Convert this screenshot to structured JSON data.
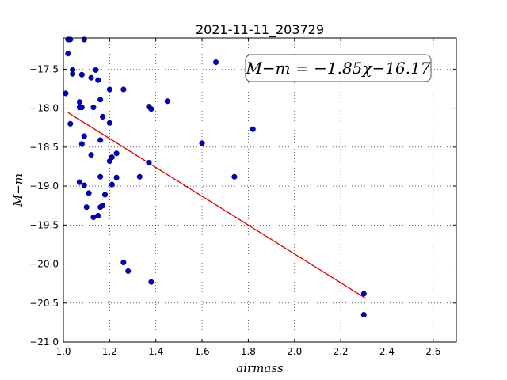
{
  "chart_data": {
    "type": "scatter",
    "title": "2021-11-11_203729",
    "xlabel": "airmass",
    "ylabel": "M−m",
    "xlim": [
      1.0,
      2.7
    ],
    "ylim": [
      -21.0,
      -17.1
    ],
    "xticks": [
      1.0,
      1.2,
      1.4,
      1.6,
      1.8,
      2.0,
      2.2,
      2.4,
      2.6
    ],
    "xtick_labels": [
      "1.0",
      "1.2",
      "1.4",
      "1.6",
      "1.8",
      "2.0",
      "2.2",
      "2.4",
      "2.6"
    ],
    "yticks": [
      -17.5,
      -18.0,
      -18.5,
      -19.0,
      -19.5,
      -20.0,
      -20.5,
      -21.0
    ],
    "ytick_labels": [
      "−17.5",
      "−18.0",
      "−18.5",
      "−19.0",
      "−19.5",
      "−20.0",
      "−20.5",
      "−21.0"
    ],
    "grid": true,
    "annotation": "M−m = −1.85χ−16.17",
    "fit": {
      "slope": -1.85,
      "intercept": -16.17,
      "x_range": [
        1.02,
        2.31
      ],
      "color": "#dd0000"
    },
    "point_color": "#0000cc",
    "points": [
      {
        "x": 1.02,
        "y": -17.12
      },
      {
        "x": 1.03,
        "y": -17.12
      },
      {
        "x": 1.09,
        "y": -17.12
      },
      {
        "x": 1.02,
        "y": -17.3
      },
      {
        "x": 1.04,
        "y": -17.51
      },
      {
        "x": 1.04,
        "y": -17.56
      },
      {
        "x": 1.08,
        "y": -17.57
      },
      {
        "x": 1.12,
        "y": -17.61
      },
      {
        "x": 1.14,
        "y": -17.51
      },
      {
        "x": 1.15,
        "y": -17.64
      },
      {
        "x": 1.01,
        "y": -17.81
      },
      {
        "x": 1.07,
        "y": -17.92
      },
      {
        "x": 1.07,
        "y": -17.99
      },
      {
        "x": 1.08,
        "y": -17.99
      },
      {
        "x": 1.13,
        "y": -17.99
      },
      {
        "x": 1.16,
        "y": -17.89
      },
      {
        "x": 1.2,
        "y": -17.76
      },
      {
        "x": 1.26,
        "y": -17.76
      },
      {
        "x": 1.37,
        "y": -17.98
      },
      {
        "x": 1.38,
        "y": -18.01
      },
      {
        "x": 1.45,
        "y": -17.91
      },
      {
        "x": 1.66,
        "y": -17.41
      },
      {
        "x": 1.03,
        "y": -18.2
      },
      {
        "x": 1.09,
        "y": -18.36
      },
      {
        "x": 1.08,
        "y": -18.46
      },
      {
        "x": 1.17,
        "y": -18.11
      },
      {
        "x": 1.2,
        "y": -18.19
      },
      {
        "x": 1.16,
        "y": -18.41
      },
      {
        "x": 1.12,
        "y": -18.6
      },
      {
        "x": 1.23,
        "y": -18.58
      },
      {
        "x": 1.21,
        "y": -18.63
      },
      {
        "x": 1.2,
        "y": -18.68
      },
      {
        "x": 1.37,
        "y": -18.7
      },
      {
        "x": 1.6,
        "y": -18.45
      },
      {
        "x": 1.82,
        "y": -18.27
      },
      {
        "x": 1.74,
        "y": -18.88
      },
      {
        "x": 1.07,
        "y": -18.95
      },
      {
        "x": 1.09,
        "y": -18.99
      },
      {
        "x": 1.16,
        "y": -18.88
      },
      {
        "x": 1.21,
        "y": -18.98
      },
      {
        "x": 1.23,
        "y": -18.89
      },
      {
        "x": 1.33,
        "y": -18.88
      },
      {
        "x": 1.11,
        "y": -19.09
      },
      {
        "x": 1.18,
        "y": -19.11
      },
      {
        "x": 1.1,
        "y": -19.27
      },
      {
        "x": 1.16,
        "y": -19.27
      },
      {
        "x": 1.17,
        "y": -19.25
      },
      {
        "x": 1.13,
        "y": -19.4
      },
      {
        "x": 1.15,
        "y": -19.38
      },
      {
        "x": 1.26,
        "y": -19.98
      },
      {
        "x": 1.28,
        "y": -20.09
      },
      {
        "x": 1.38,
        "y": -20.23
      },
      {
        "x": 2.3,
        "y": -20.38
      },
      {
        "x": 2.3,
        "y": -20.65
      }
    ]
  }
}
